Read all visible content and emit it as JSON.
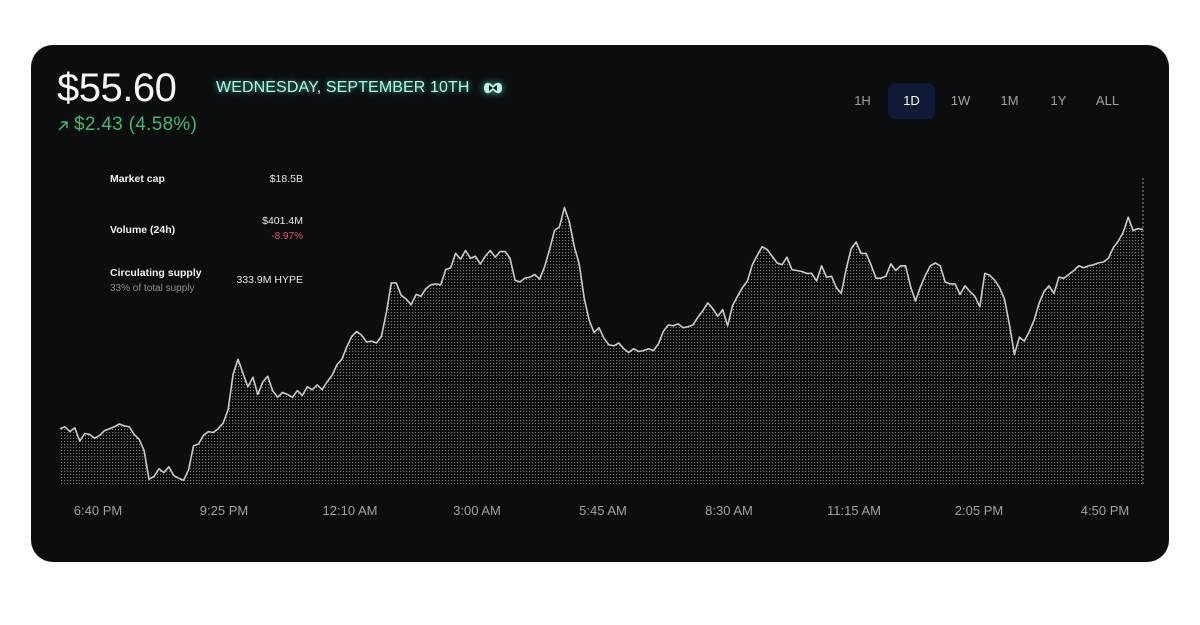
{
  "header": {
    "price": "$55.60",
    "date": "WEDNESDAY, SEPTEMBER 10TH",
    "logo_icon": "hyperliquid-logo-icon",
    "change_icon": "arrow-up-right-icon",
    "change": "$2.43 (4.58%)",
    "colors": {
      "positive": "#3dbb72",
      "negative": "#e0555d",
      "accent": "#aef8ea",
      "card_bg": "#0c0d0f",
      "active_range_bg": "#0e1a38"
    }
  },
  "ranges": {
    "items": [
      "1H",
      "1D",
      "1W",
      "1M",
      "1Y",
      "ALL"
    ],
    "selected": "1D"
  },
  "stats": {
    "market_cap": {
      "label": "Market cap",
      "value": "$18.5B"
    },
    "volume": {
      "label": "Volume (24h)",
      "value": "$401.4M",
      "change": "-8.97%"
    },
    "supply": {
      "label": "Circulating supply",
      "sub": "33% of total supply",
      "value": "333.9M HYPE"
    }
  },
  "chart_data": {
    "type": "area",
    "title": "",
    "xlabel": "",
    "ylabel": "",
    "grid": false,
    "x_ticks": [
      "6:40 PM",
      "9:25 PM",
      "12:10 AM",
      "3:00 AM",
      "5:45 AM",
      "8:30 AM",
      "11:15 AM",
      "2:05 PM",
      "4:50 PM"
    ],
    "ylim": [
      52.8,
      56.2
    ],
    "series": [
      {
        "values": [
          53.38,
          53.4,
          53.35,
          53.39,
          53.25,
          53.33,
          53.32,
          53.28,
          53.31,
          53.36,
          53.38,
          53.4,
          53.43,
          53.41,
          53.4,
          53.32,
          53.27,
          53.15,
          52.85,
          52.88,
          52.96,
          52.92,
          52.98,
          52.89,
          52.86,
          52.84,
          52.95,
          53.2,
          53.22,
          53.31,
          53.35,
          53.34,
          53.38,
          53.44,
          53.58,
          53.95,
          54.11,
          53.96,
          53.82,
          53.92,
          53.74,
          53.87,
          53.93,
          53.78,
          53.71,
          53.76,
          53.74,
          53.71,
          53.78,
          53.73,
          53.82,
          53.79,
          53.84,
          53.79,
          53.87,
          53.94,
          54.05,
          54.11,
          54.24,
          54.35,
          54.4,
          54.36,
          54.29,
          54.3,
          54.28,
          54.35,
          54.6,
          54.91,
          54.91,
          54.78,
          54.74,
          54.68,
          54.79,
          54.77,
          54.85,
          54.89,
          54.9,
          54.89,
          55.05,
          55.07,
          55.22,
          55.16,
          55.25,
          55.17,
          55.19,
          55.11,
          55.19,
          55.25,
          55.18,
          55.24,
          55.24,
          55.17,
          54.94,
          54.92,
          54.96,
          54.97,
          55.0,
          54.95,
          55.08,
          55.26,
          55.46,
          55.5,
          55.7,
          55.55,
          55.29,
          55.11,
          54.75,
          54.52,
          54.39,
          54.44,
          54.33,
          54.26,
          54.25,
          54.28,
          54.22,
          54.18,
          54.22,
          54.19,
          54.2,
          54.22,
          54.2,
          54.27,
          54.4,
          54.47,
          54.46,
          54.48,
          54.44,
          54.45,
          54.47,
          54.55,
          54.62,
          54.7,
          54.64,
          54.56,
          54.63,
          54.46,
          54.67,
          54.77,
          54.86,
          54.93,
          55.1,
          55.2,
          55.29,
          55.26,
          55.19,
          55.12,
          55.1,
          55.18,
          55.05,
          55.04,
          55.03,
          55.01,
          55.01,
          54.93,
          55.09,
          54.97,
          54.98,
          54.86,
          54.8,
          55.06,
          55.27,
          55.34,
          55.22,
          55.22,
          55.1,
          54.96,
          54.96,
          54.98,
          55.11,
          55.04,
          55.09,
          55.09,
          54.87,
          54.72,
          54.87,
          54.99,
          55.09,
          55.12,
          55.09,
          54.92,
          54.9,
          54.9,
          54.79,
          54.88,
          54.82,
          54.77,
          54.66,
          55.01,
          54.99,
          54.94,
          54.86,
          54.74,
          54.47,
          54.16,
          54.34,
          54.3,
          54.4,
          54.52,
          54.7,
          54.82,
          54.88,
          54.8,
          54.97,
          54.96,
          55.0,
          55.04,
          55.09,
          55.07,
          55.09,
          55.1,
          55.12,
          55.13,
          55.17,
          55.28,
          55.35,
          55.44,
          55.6,
          55.46,
          55.48,
          55.47
        ]
      }
    ]
  }
}
